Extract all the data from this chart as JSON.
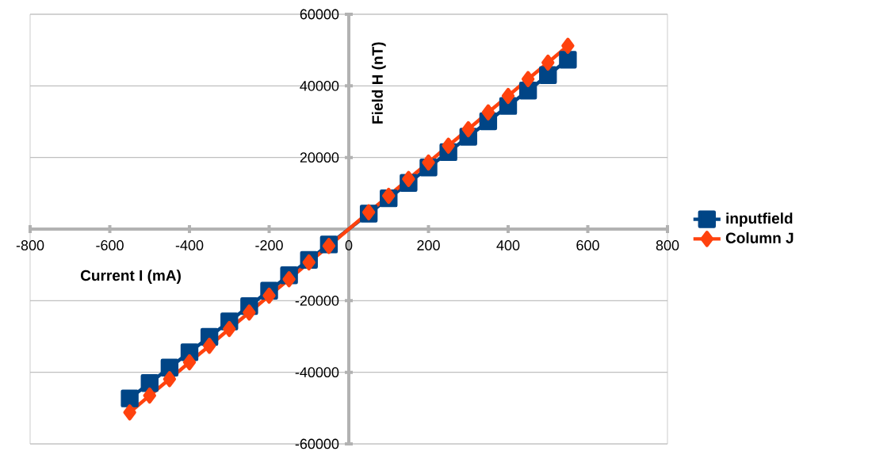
{
  "chart_data": {
    "type": "line",
    "xlabel": "Current I (mA)",
    "ylabel": "Field H (nT)",
    "x": [
      -550,
      -500,
      -450,
      -400,
      -350,
      -300,
      -250,
      -200,
      -150,
      -100,
      -50,
      50,
      100,
      150,
      200,
      250,
      300,
      350,
      400,
      450,
      500,
      550
    ],
    "series": [
      {
        "name": "inputfield",
        "color": "#004586",
        "marker": "square",
        "values": [
          -47300,
          -43000,
          -38700,
          -34400,
          -30100,
          -25800,
          -21500,
          -17200,
          -12900,
          -8600,
          -4300,
          4300,
          8600,
          12900,
          17200,
          21500,
          25800,
          30100,
          34400,
          38700,
          43000,
          47300
        ]
      },
      {
        "name": "Column J",
        "color": "#ff420e",
        "marker": "diamond",
        "values": [
          -51200,
          -46500,
          -41900,
          -37200,
          -32600,
          -27900,
          -23300,
          -18600,
          -14000,
          -9300,
          -4700,
          4700,
          9300,
          14000,
          18600,
          23300,
          27900,
          32600,
          37200,
          41900,
          46500,
          51200
        ]
      }
    ],
    "xlim": [
      -800,
      800
    ],
    "ylim": [
      -60000,
      60000
    ],
    "xticks": [
      -800,
      -600,
      -400,
      -200,
      0,
      200,
      400,
      600,
      800
    ],
    "yticks": [
      -60000,
      -40000,
      -20000,
      {
        "value": 0,
        "label": null
      },
      20000,
      40000,
      60000
    ],
    "grid": "y",
    "legend": "right",
    "line_style": "solid"
  }
}
